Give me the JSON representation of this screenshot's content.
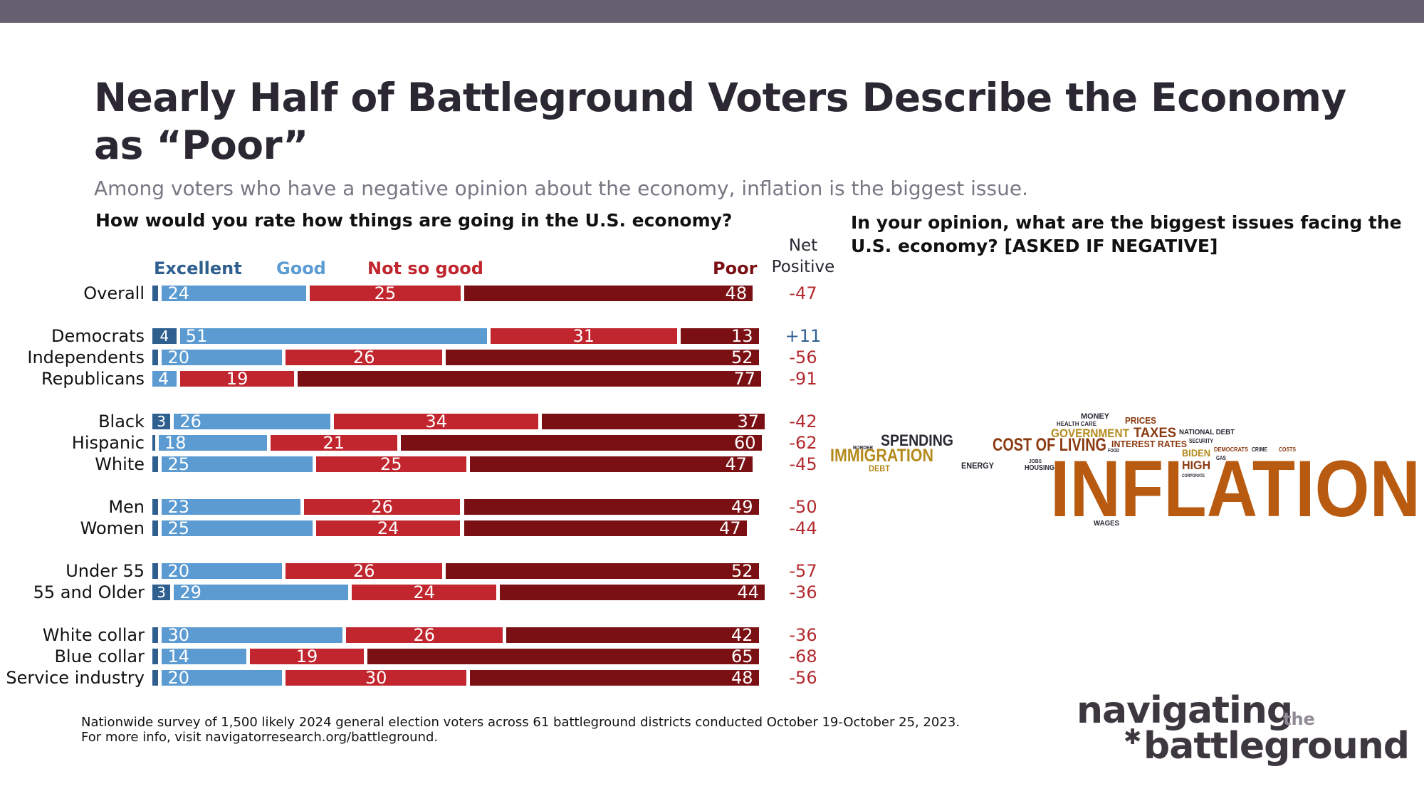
{
  "header": {
    "title": "Nearly Half of Battleground Voters Describe the Economy as “Poor”",
    "subtitle": "Among voters who have a negative opinion about the economy, inflation is the biggest issue."
  },
  "left_question": "How would you rate how things are going in the U.S. economy?",
  "right_question": "In your opinion, what are the biggest issues facing the U.S. economy? [ASKED IF NEGATIVE]",
  "net_header": "Net Positive",
  "colors": {
    "excellent": "#2f5f8f",
    "good": "#5b9bd1",
    "not_so_good": "#c1262e",
    "poor": "#7a1014",
    "net_positive": "#2f5f8f",
    "net_negative": "#b32a2f",
    "inflation": "#b85a10",
    "wordcloud_gold": "#b58a1c",
    "wordcloud_brown": "#8a3a10"
  },
  "chart_data": {
    "type": "bar",
    "orientation": "horizontal",
    "stacked": true,
    "series_names": [
      "Excellent",
      "Good",
      "Not so good",
      "Poor"
    ],
    "rows": [
      {
        "label": "Overall",
        "excellent": 1,
        "excellent_label": "",
        "good": 24,
        "not_so_good": 25,
        "poor": 48,
        "net": "-47"
      },
      {
        "label": "Democrats",
        "excellent": 4,
        "excellent_label": "4",
        "good": 51,
        "not_so_good": 31,
        "poor": 13,
        "net": "+11"
      },
      {
        "label": "Independents",
        "excellent": 1,
        "excellent_label": "",
        "good": 20,
        "not_so_good": 26,
        "poor": 52,
        "net": "-56"
      },
      {
        "label": "Republicans",
        "excellent": 0,
        "excellent_label": "",
        "good": 4,
        "not_so_good": 19,
        "poor": 77,
        "net": "-91"
      },
      {
        "label": "Black",
        "excellent": 3,
        "excellent_label": "3",
        "good": 26,
        "not_so_good": 34,
        "poor": 37,
        "net": "-42"
      },
      {
        "label": "Hispanic",
        "excellent": 0.4,
        "excellent_label": "",
        "good": 18,
        "not_so_good": 21,
        "poor": 60,
        "net": "-62"
      },
      {
        "label": "White",
        "excellent": 1,
        "excellent_label": "",
        "good": 25,
        "not_so_good": 25,
        "poor": 47,
        "net": "-45"
      },
      {
        "label": "Men",
        "excellent": 1,
        "excellent_label": "",
        "good": 23,
        "not_so_good": 26,
        "poor": 49,
        "net": "-50"
      },
      {
        "label": "Women",
        "excellent": 1,
        "excellent_label": "",
        "good": 25,
        "not_so_good": 24,
        "poor": 47,
        "net": "-44"
      },
      {
        "label": "Under 55",
        "excellent": 1,
        "excellent_label": "",
        "good": 20,
        "not_so_good": 26,
        "poor": 52,
        "net": "-57"
      },
      {
        "label": "55 and Older",
        "excellent": 3,
        "excellent_label": "3",
        "good": 29,
        "not_so_good": 24,
        "poor": 44,
        "net": "-36"
      },
      {
        "label": "White collar",
        "excellent": 1,
        "excellent_label": "",
        "good": 30,
        "not_so_good": 26,
        "poor": 42,
        "net": "-36"
      },
      {
        "label": "Blue collar",
        "excellent": 1,
        "excellent_label": "",
        "good": 14,
        "not_so_good": 19,
        "poor": 65,
        "net": "-68"
      },
      {
        "label": "Service industry",
        "excellent": 1,
        "excellent_label": "",
        "good": 20,
        "not_so_good": 30,
        "poor": 48,
        "net": "-56"
      }
    ]
  },
  "word_cloud": [
    {
      "text": "INFLATION",
      "size": "large",
      "color": "inflation"
    },
    {
      "text": "COST OF LIVING",
      "size": "medium",
      "color": "wordcloud_brown"
    },
    {
      "text": "IMMIGRATION",
      "size": "medium",
      "color": "wordcloud_gold"
    },
    {
      "text": "SPENDING",
      "size": "medium",
      "color": "dark"
    },
    {
      "text": "GOVERNMENT",
      "size": "small",
      "color": "wordcloud_gold"
    },
    {
      "text": "TAXES",
      "size": "small",
      "color": "wordcloud_brown"
    },
    {
      "text": "PRICES",
      "size": "small",
      "color": "wordcloud_brown"
    },
    {
      "text": "MONEY",
      "size": "small",
      "color": "dark"
    },
    {
      "text": "HEALTH CARE",
      "size": "tiny",
      "color": "dark"
    },
    {
      "text": "NATIONAL DEBT",
      "size": "tiny",
      "color": "dark"
    },
    {
      "text": "INTEREST RATES",
      "size": "small",
      "color": "wordcloud_brown"
    },
    {
      "text": "SECURITY",
      "size": "tiny",
      "color": "dark"
    },
    {
      "text": "BIDEN",
      "size": "small",
      "color": "wordcloud_gold"
    },
    {
      "text": "HIGH",
      "size": "small",
      "color": "wordcloud_brown"
    },
    {
      "text": "DEMOCRATS",
      "size": "tiny",
      "color": "wordcloud_brown"
    },
    {
      "text": "CRIME",
      "size": "tiny",
      "color": "dark"
    },
    {
      "text": "COSTS",
      "size": "tiny",
      "color": "wordcloud_brown"
    },
    {
      "text": "GAS",
      "size": "tiny",
      "color": "dark"
    },
    {
      "text": "ENERGY",
      "size": "small",
      "color": "dark"
    },
    {
      "text": "HOUSING",
      "size": "tiny",
      "color": "dark"
    },
    {
      "text": "JOBS",
      "size": "tiny",
      "color": "dark"
    },
    {
      "text": "DEBT",
      "size": "small",
      "color": "wordcloud_gold"
    },
    {
      "text": "BORDER",
      "size": "tiny",
      "color": "dark"
    },
    {
      "text": "WAGES",
      "size": "tiny",
      "color": "dark"
    },
    {
      "text": "FOOD",
      "size": "tiny",
      "color": "dark"
    },
    {
      "text": "CORPORATE",
      "size": "tiny",
      "color": "dark"
    }
  ],
  "footnote": {
    "line1": "Nationwide survey of 1,500 likely 2024 general election voters across 61 battleground districts conducted October 19-October 25, 2023.",
    "line2": "For more info, visit navigatorresearch.org/battleground."
  },
  "logo": {
    "top": "navigating",
    "the": "the",
    "bottom": "battleground"
  }
}
